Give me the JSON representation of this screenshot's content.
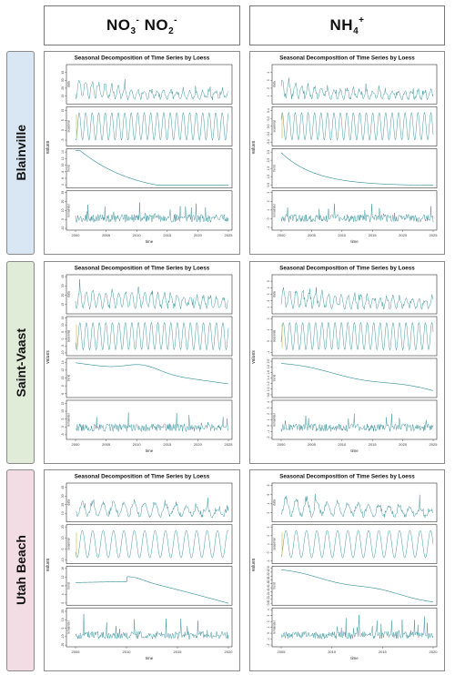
{
  "headers": {
    "nox": {
      "base": "NO",
      "sub1": "3",
      "sup1": "-",
      "mid": " NO",
      "sub2": "2",
      "sup2": "-"
    },
    "nh4": {
      "base": "NH",
      "sub": "4",
      "sup": "+"
    }
  },
  "sites": [
    {
      "label": "Blainville",
      "color": "#d9e6f4"
    },
    {
      "label": "Saint-Vaast",
      "color": "#e1ecd8"
    },
    {
      "label": "Utah Beach",
      "color": "#f3dde4"
    }
  ],
  "series_colors": {
    "main": "#2e8c95",
    "accent": "#d8c24a"
  },
  "chart_data": [
    {
      "type": "line",
      "site": "Blainville",
      "variable": "NO3- NO2-",
      "title": "Seasonal Decomposition of Time Series by Loess",
      "xlabel": "time",
      "ylabel": "values",
      "xlim": [
        2000,
        2025
      ],
      "x_ticks": [
        "2000",
        "2005",
        "2010",
        "2015",
        "2020",
        "2025"
      ],
      "components": [
        {
          "name": "data",
          "ticks": [
            "0",
            "10",
            "20",
            "30",
            "40",
            "50"
          ],
          "range": [
            0,
            50
          ]
        },
        {
          "name": "seasonal",
          "ticks": [
            "-5",
            "0",
            "5",
            "10"
          ],
          "range": [
            -8,
            12
          ]
        },
        {
          "name": "trend",
          "ticks": [
            "4",
            "6",
            "8",
            "10",
            "12",
            "14"
          ],
          "range": [
            3,
            15
          ]
        },
        {
          "name": "remainder",
          "ticks": [
            "-10",
            "0",
            "10",
            "20",
            "30"
          ],
          "range": [
            -12,
            32
          ]
        }
      ]
    },
    {
      "type": "line",
      "site": "Blainville",
      "variable": "NH4+",
      "title": "Seasonal Decomposition of Time Series by Loess",
      "xlabel": "time",
      "ylabel": "values",
      "xlim": [
        2000,
        2025
      ],
      "x_ticks": [
        "2000",
        "2005",
        "2010",
        "2015",
        "2020",
        "2025"
      ],
      "components": [
        {
          "name": "data",
          "ticks": [
            "0",
            "1",
            "2",
            "3",
            "4",
            "5"
          ],
          "range": [
            0,
            5
          ]
        },
        {
          "name": "seasonal",
          "ticks": [
            "-0.4",
            "-0.2",
            "0.0",
            "0.2",
            "0.4"
          ],
          "range": [
            -0.5,
            0.5
          ]
        },
        {
          "name": "trend",
          "ticks": [
            "0.5",
            "1.0",
            "1.5",
            "2.0",
            "2.5"
          ],
          "range": [
            0.3,
            2.7
          ]
        },
        {
          "name": "remainder",
          "ticks": [
            "-1",
            "0",
            "1",
            "2",
            "3"
          ],
          "range": [
            -1.3,
            3.2
          ]
        }
      ]
    },
    {
      "type": "line",
      "site": "Saint-Vaast",
      "variable": "NO3- NO2-",
      "title": "Seasonal Decomposition of Time Series by Loess",
      "xlabel": "time",
      "ylabel": "values",
      "xlim": [
        2000,
        2025
      ],
      "x_ticks": [
        "2000",
        "2005",
        "2010",
        "2015",
        "2020",
        "2025"
      ],
      "components": [
        {
          "name": "data",
          "ticks": [
            "0",
            "10",
            "20",
            "30",
            "40"
          ],
          "range": [
            0,
            42
          ]
        },
        {
          "name": "seasonal",
          "ticks": [
            "-10",
            "-5",
            "0",
            "5",
            "10",
            "15"
          ],
          "range": [
            -12,
            16
          ]
        },
        {
          "name": "trend",
          "ticks": [
            "6",
            "8",
            "10",
            "12",
            "14"
          ],
          "range": [
            5,
            15
          ]
        },
        {
          "name": "remainder",
          "ticks": [
            "-5",
            "0",
            "5",
            "10",
            "15"
          ],
          "range": [
            -8,
            17
          ]
        }
      ]
    },
    {
      "type": "line",
      "site": "Saint-Vaast",
      "variable": "NH4+",
      "title": "Seasonal Decomposition of Time Series by Loess",
      "xlabel": "time",
      "ylabel": "values",
      "xlim": [
        2000,
        2025
      ],
      "x_ticks": [
        "2000",
        "2005",
        "2010",
        "2015",
        "2020",
        "2025"
      ],
      "components": [
        {
          "name": "data",
          "ticks": [
            "0",
            "1",
            "2",
            "3",
            "4",
            "5",
            "6"
          ],
          "range": [
            0,
            6
          ]
        },
        {
          "name": "seasonal",
          "ticks": [
            "-1",
            "0",
            "1",
            "2"
          ],
          "range": [
            -1.3,
            2.2
          ]
        },
        {
          "name": "trend",
          "ticks": [
            "0.8",
            "1.0",
            "1.2",
            "1.4",
            "1.6",
            "1.8",
            "2.0"
          ],
          "range": [
            0.7,
            2.1
          ]
        },
        {
          "name": "remainder",
          "ticks": [
            "-2",
            "-1",
            "0",
            "1",
            "2",
            "3",
            "4"
          ],
          "range": [
            -2.3,
            4.3
          ]
        }
      ]
    },
    {
      "type": "line",
      "site": "Utah Beach",
      "variable": "NO3- NO2-",
      "title": "Seasonal Decomposition of Time Series by Loess",
      "xlabel": "time",
      "ylabel": "values",
      "xlim": [
        2005,
        2020
      ],
      "x_ticks": [
        "2005",
        "2010",
        "2015",
        "2020"
      ],
      "components": [
        {
          "name": "data",
          "ticks": [
            "0",
            "10",
            "20",
            "30",
            "40"
          ],
          "range": [
            0,
            45
          ]
        },
        {
          "name": "seasonal",
          "ticks": [
            "-10",
            "0",
            "10",
            "20"
          ],
          "range": [
            -13,
            22
          ]
        },
        {
          "name": "trend",
          "ticks": [
            "0",
            "4",
            "8",
            "12",
            "16"
          ],
          "range": [
            -1,
            17
          ]
        },
        {
          "name": "remainder",
          "ticks": [
            "-20",
            "-10",
            "0",
            "10",
            "20"
          ],
          "range": [
            -22,
            24
          ]
        }
      ]
    },
    {
      "type": "line",
      "site": "Utah Beach",
      "variable": "NH4+",
      "title": "Seasonal Decomposition of Time Series by Loess",
      "xlabel": "time",
      "ylabel": "values",
      "xlim": [
        2005,
        2020
      ],
      "x_ticks": [
        "2005",
        "2010",
        "2015",
        "2020"
      ],
      "components": [
        {
          "name": "data",
          "ticks": [
            "0",
            "2",
            "4",
            "6",
            "8"
          ],
          "range": [
            0,
            8.5
          ]
        },
        {
          "name": "seasonal",
          "ticks": [
            "-1",
            "0",
            "1",
            "2",
            "3"
          ],
          "range": [
            -1.3,
            3.3
          ]
        },
        {
          "name": "trend",
          "ticks": [
            "0.8",
            "1.0",
            "1.2",
            "1.4",
            "1.6",
            "1.8",
            "2.0",
            "2.2",
            "2.4",
            "2.6"
          ],
          "range": [
            0.7,
            2.7
          ]
        },
        {
          "name": "remainder",
          "ticks": [
            "-2",
            "-1",
            "0",
            "1",
            "2",
            "3",
            "4"
          ],
          "range": [
            -2.3,
            4.3
          ]
        }
      ]
    }
  ]
}
